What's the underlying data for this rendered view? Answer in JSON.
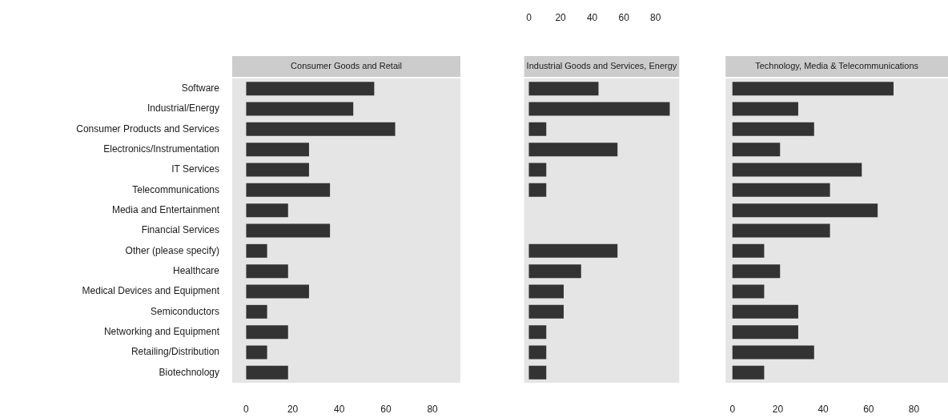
{
  "chart_data": [
    {
      "type": "bar",
      "orientation": "horizontal",
      "title": "Consumer Goods and Retail",
      "categories": [
        "Software",
        "Industrial/Energy",
        "Consumer Products and Services",
        "Electronics/Instrumentation",
        "IT Services",
        "Telecommunications",
        "Media and Entertainment",
        "Financial Services",
        "Other (please specify)",
        "Healthcare",
        "Medical Devices and Equipment",
        "Semiconductors",
        "Networking and Equipment",
        "Retailing/Distribution",
        "Biotechnology"
      ],
      "series": [
        {
          "color": "#333333",
          "values": [
            55,
            46,
            64,
            27,
            27,
            36,
            18,
            36,
            9,
            18,
            27,
            9,
            18,
            9,
            18
          ]
        }
      ],
      "xlim": [
        -6,
        92
      ],
      "xticks": [
        0,
        20,
        40,
        60,
        80
      ],
      "grid": false,
      "legend": false
    },
    {
      "type": "bar",
      "orientation": "horizontal",
      "title": "Industrial Goods and Services, Energy",
      "categories": [
        null,
        null,
        null,
        null,
        null,
        null,
        null,
        null,
        null,
        null,
        null,
        null,
        null,
        null,
        null
      ],
      "series": [
        {
          "color": "#333333",
          "axis": "x2",
          "values": [
            44,
            89,
            11,
            56,
            11,
            11,
            null,
            null,
            56,
            33,
            22,
            22,
            11,
            11,
            11
          ]
        }
      ],
      "x2lim": [
        -3,
        95
      ],
      "x2ticks": [
        0,
        20,
        40,
        60,
        80
      ],
      "tick_labels": "x",
      "grid": false,
      "legend": false
    },
    {
      "type": "bar",
      "orientation": "horizontal",
      "title": "Technology, Media & Telecommunications",
      "categories": [
        null,
        null,
        null,
        null,
        null,
        null,
        null,
        null,
        null,
        null,
        null,
        null,
        null,
        null,
        null
      ],
      "series": [
        {
          "color": "#333333",
          "values": [
            71,
            29,
            36,
            21,
            57,
            43,
            64,
            43,
            14,
            21,
            14,
            29,
            29,
            36,
            14
          ]
        }
      ],
      "xlim": [
        -3,
        95
      ],
      "xticks": [
        0,
        20,
        40,
        60,
        80
      ],
      "tick_labels": "x",
      "grid": false,
      "legend": false
    }
  ]
}
